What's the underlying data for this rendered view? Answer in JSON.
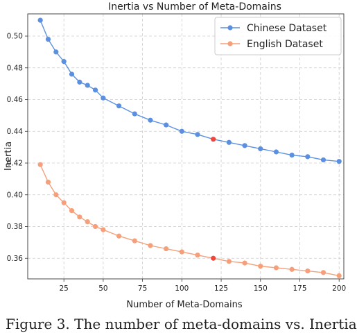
{
  "chart_data": {
    "type": "line",
    "title": "Inertia vs Number of Meta-Domains",
    "xlabel": "Number of Meta-Domains",
    "ylabel": "Inertia",
    "xlim": [
      2,
      203
    ],
    "ylim": [
      0.347,
      0.514
    ],
    "xticks": [
      25,
      50,
      75,
      100,
      125,
      150,
      175,
      200
    ],
    "yticks": [
      0.36,
      0.38,
      0.4,
      0.42,
      0.44,
      0.46,
      0.48,
      0.5
    ],
    "grid": true,
    "legend_position": "top-right",
    "series": [
      {
        "name": "Chinese Dataset",
        "color": "#5b8fe0",
        "highlight_color": "#f0463c",
        "highlight_x": 120,
        "x": [
          10,
          15,
          20,
          25,
          30,
          35,
          40,
          45,
          50,
          60,
          70,
          80,
          90,
          100,
          110,
          120,
          130,
          140,
          150,
          160,
          170,
          180,
          190,
          200
        ],
        "values": [
          0.51,
          0.498,
          0.49,
          0.484,
          0.476,
          0.471,
          0.469,
          0.466,
          0.461,
          0.456,
          0.451,
          0.447,
          0.444,
          0.44,
          0.438,
          0.435,
          0.433,
          0.431,
          0.429,
          0.427,
          0.425,
          0.424,
          0.422,
          0.421
        ]
      },
      {
        "name": "English Dataset",
        "color": "#f5a07a",
        "highlight_color": "#f0463c",
        "highlight_x": 120,
        "x": [
          10,
          15,
          20,
          25,
          30,
          35,
          40,
          45,
          50,
          60,
          70,
          80,
          90,
          100,
          110,
          120,
          130,
          140,
          150,
          160,
          170,
          180,
          190,
          200
        ],
        "values": [
          0.419,
          0.408,
          0.4,
          0.395,
          0.39,
          0.386,
          0.383,
          0.38,
          0.378,
          0.374,
          0.371,
          0.368,
          0.366,
          0.364,
          0.362,
          0.36,
          0.358,
          0.357,
          0.355,
          0.354,
          0.353,
          0.352,
          0.351,
          0.349
        ]
      }
    ]
  },
  "caption": "Figure 3. The number of meta-domains vs. Inertia"
}
